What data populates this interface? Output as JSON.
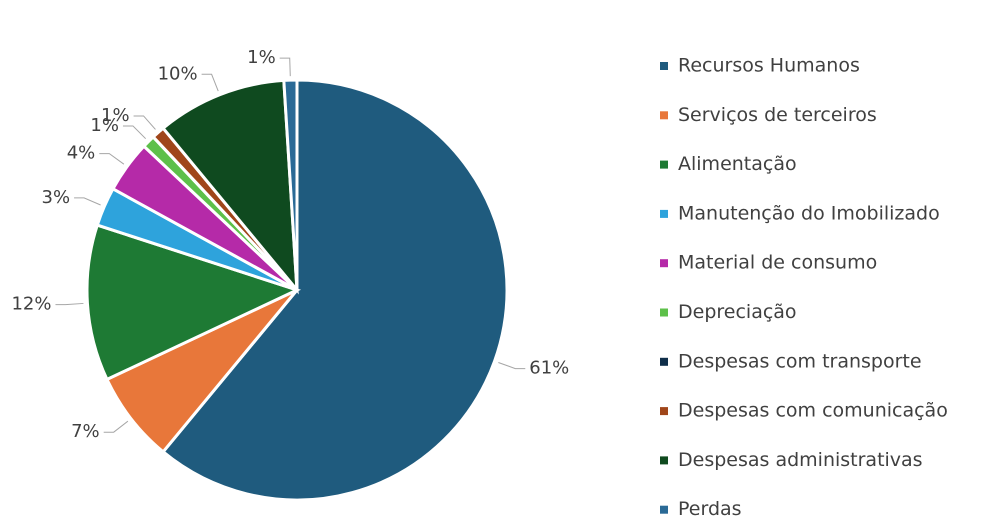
{
  "chart_data": {
    "type": "pie",
    "categories": [
      "Recursos Humanos",
      "Serviços de terceiros",
      "Alimentação",
      "Manutenção do Imobilizado",
      "Material de consumo",
      "Depreciação",
      "Despesas com transporte",
      "Despesas com comunicação",
      "Despesas administrativas",
      "Perdas"
    ],
    "values": [
      61,
      7,
      12,
      3,
      4,
      1,
      0,
      1,
      10,
      1
    ],
    "value_labels": [
      "61%",
      "7%",
      "12%",
      "3%",
      "4%",
      "1%",
      null,
      "1%",
      "10%",
      "1%"
    ],
    "colors": [
      "#1f5b7e",
      "#e8773a",
      "#1e7a34",
      "#2ea3dc",
      "#b52aa8",
      "#5dc04a",
      "#0f2e4a",
      "#a0461a",
      "#0f4a1f",
      "#2a6a96"
    ],
    "legend": "right"
  }
}
